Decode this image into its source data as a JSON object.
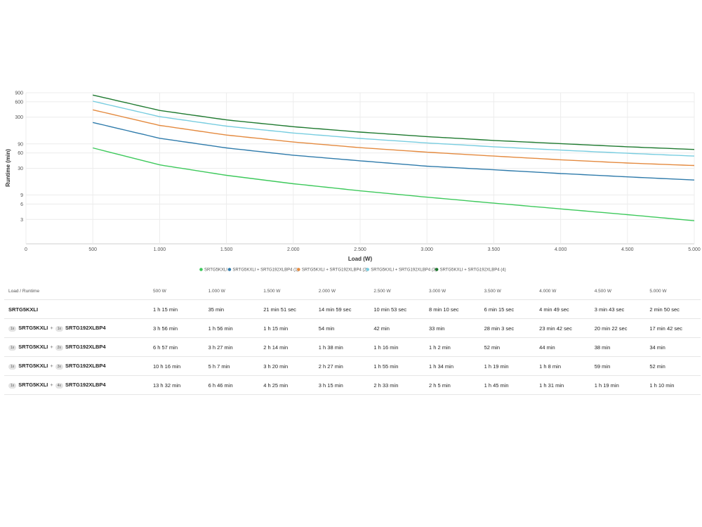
{
  "chart_data": {
    "type": "line",
    "xlabel": "Load (W)",
    "ylabel": "Runtime (min)",
    "x_ticks": [
      "0",
      "500",
      "1.000",
      "1.500",
      "2.000",
      "2.500",
      "3.000",
      "3.500",
      "4.000",
      "4.500",
      "5.000"
    ],
    "x_tick_values": [
      0,
      500,
      1000,
      1500,
      2000,
      2500,
      3000,
      3500,
      4000,
      4500,
      5000
    ],
    "xlim": [
      0,
      5000
    ],
    "y_scale": "log",
    "y_ticks": [
      "3",
      "6",
      "9",
      "30",
      "60",
      "90",
      "300",
      "600",
      "900"
    ],
    "y_tick_values": [
      3,
      6,
      9,
      30,
      60,
      90,
      300,
      600,
      900
    ],
    "ylim": [
      1,
      900
    ],
    "grid": true,
    "legend_position": "bottom",
    "x": [
      500,
      1000,
      1500,
      2000,
      2500,
      3000,
      3500,
      4000,
      4500,
      5000
    ],
    "series": [
      {
        "name": "SRTG5KXLI",
        "color": "#3ec95c",
        "values": [
          75,
          35,
          21.85,
          14.98,
          10.88,
          8.17,
          6.25,
          4.82,
          3.72,
          2.83
        ]
      },
      {
        "name": "SRTG5KXLI + SRTG192XLBP4 (1)",
        "color": "#2f7bab",
        "values": [
          236,
          116,
          75,
          54,
          42,
          33,
          28.05,
          23.7,
          20.37,
          17.7
        ]
      },
      {
        "name": "SRTG5KXLI + SRTG192XLBP4 (2)",
        "color": "#e48a3f",
        "values": [
          417,
          207,
          134,
          98,
          76,
          62,
          52,
          44,
          38,
          34
        ]
      },
      {
        "name": "SRTG5KXLI + SRTG192XLBP4 (3)",
        "color": "#78cde0",
        "values": [
          616,
          307,
          200,
          147,
          115,
          94,
          79,
          68,
          59,
          52
        ]
      },
      {
        "name": "SRTG5KXLI + SRTG192XLBP4 (4)",
        "color": "#1f7a30",
        "values": [
          812,
          406,
          265,
          195,
          153,
          125,
          105,
          91,
          79,
          70
        ]
      }
    ]
  },
  "table": {
    "header_label": "Load / Runtime",
    "columns": [
      "500 W",
      "1.000 W",
      "1.500 W",
      "2.000 W",
      "2.500 W",
      "3.000 W",
      "3.500 W",
      "4.000 W",
      "4.500 W",
      "5.000 W"
    ],
    "rows": [
      {
        "ups": "SRTG5KXLI",
        "ups_qty": "",
        "battery": "",
        "battery_qty": "",
        "values": [
          "1 h 15 min",
          "35 min",
          "21 min 51 sec",
          "14 min 59 sec",
          "10 min 53 sec",
          "8 min 10 sec",
          "6 min 15 sec",
          "4 min 49 sec",
          "3 min 43 sec",
          "2 min 50 sec"
        ]
      },
      {
        "ups": "SRTG5KXLI",
        "ups_qty": "1x",
        "battery": "SRTG192XLBP4",
        "battery_qty": "1x",
        "values": [
          "3 h 56 min",
          "1 h 56 min",
          "1 h 15 min",
          "54 min",
          "42 min",
          "33 min",
          "28 min 3 sec",
          "23 min 42 sec",
          "20 min 22 sec",
          "17 min 42 sec"
        ]
      },
      {
        "ups": "SRTG5KXLI",
        "ups_qty": "1x",
        "battery": "SRTG192XLBP4",
        "battery_qty": "2x",
        "values": [
          "6 h 57 min",
          "3 h 27 min",
          "2 h 14 min",
          "1 h 38 min",
          "1 h 16 min",
          "1 h 2 min",
          "52 min",
          "44 min",
          "38 min",
          "34 min"
        ]
      },
      {
        "ups": "SRTG5KXLI",
        "ups_qty": "1x",
        "battery": "SRTG192XLBP4",
        "battery_qty": "3x",
        "values": [
          "10 h 16 min",
          "5 h 7 min",
          "3 h 20 min",
          "2 h 27 min",
          "1 h 55 min",
          "1 h 34 min",
          "1 h 19 min",
          "1 h 8 min",
          "59 min",
          "52 min"
        ]
      },
      {
        "ups": "SRTG5KXLI",
        "ups_qty": "1x",
        "battery": "SRTG192XLBP4",
        "battery_qty": "4x",
        "values": [
          "13 h 32 min",
          "6 h 46 min",
          "4 h 25 min",
          "3 h 15 min",
          "2 h 33 min",
          "2 h 5 min",
          "1 h 45 min",
          "1 h 31 min",
          "1 h 19 min",
          "1 h 10 min"
        ]
      }
    ]
  }
}
